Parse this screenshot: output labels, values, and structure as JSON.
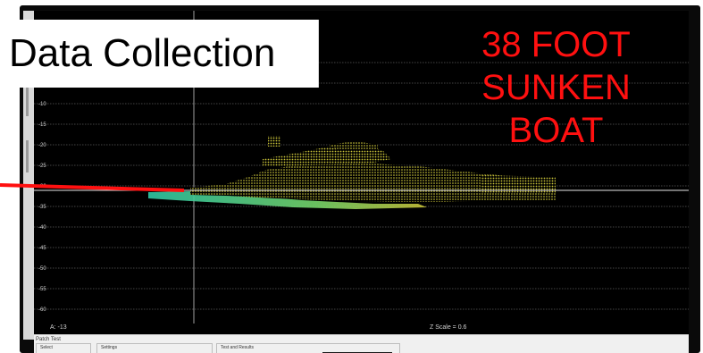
{
  "overlay": {
    "title": "Data Collection",
    "annotation_lines": [
      "38 FOOT",
      "SUNKEN",
      "BOAT"
    ]
  },
  "plot": {
    "y_ticks": [
      {
        "label": "-10",
        "value": -10
      },
      {
        "label": "-15",
        "value": -15
      },
      {
        "label": "-20",
        "value": -20
      },
      {
        "label": "-25",
        "value": -25
      },
      {
        "label": "-30",
        "value": -30
      },
      {
        "label": "-35",
        "value": -35
      },
      {
        "label": "-40",
        "value": -40
      },
      {
        "label": "-45",
        "value": -45
      },
      {
        "label": "-50",
        "value": -50
      },
      {
        "label": "-55",
        "value": -55
      },
      {
        "label": "-60",
        "value": -60
      }
    ],
    "cursor_readout": "A: -13",
    "zscale_readout": "Z Scale = 0.6",
    "colors": {
      "background": "#000000",
      "grid": "#8a8a8a",
      "point_cloud": "#d8d23a",
      "point_cloud_low": "#3fd0b0",
      "annotation": "#ff1010"
    }
  },
  "bottom_panel": {
    "title": "Patch Test",
    "groups": [
      {
        "label": "Select"
      },
      {
        "label": "Settings"
      },
      {
        "label": "Test and Results"
      }
    ]
  }
}
